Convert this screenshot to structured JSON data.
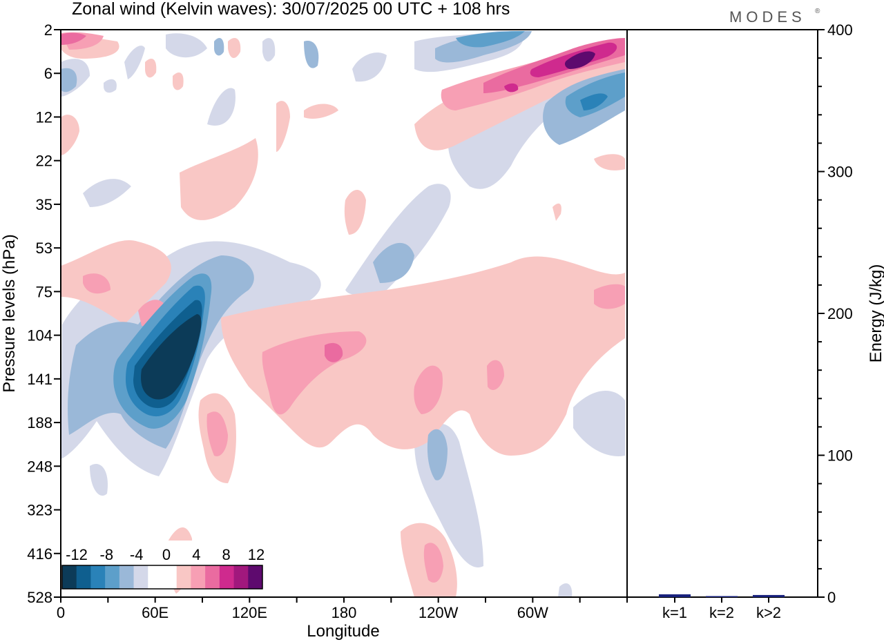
{
  "chart_data": [
    {
      "type": "heatmap",
      "title": "Zonal wind (Kelvin waves):  30/07/2025  00 UTC  + 108 hrs",
      "xlabel": "Longitude",
      "ylabel": "Pressure levels (hPa)",
      "x_ticks": [
        "0",
        "60E",
        "120E",
        "180",
        "120W",
        "60W"
      ],
      "x_tick_positions_deg": [
        0,
        60,
        120,
        180,
        240,
        300
      ],
      "xlim": [
        0,
        360
      ],
      "y_ticks": [
        "2",
        "6",
        "12",
        "22",
        "35",
        "53",
        "75",
        "104",
        "141",
        "188",
        "248",
        "323",
        "416",
        "528"
      ],
      "colorbar": {
        "labels": [
          "-12",
          "-8",
          "-4",
          "0",
          "4",
          "8",
          "12"
        ],
        "levels": [
          -14,
          -12,
          -10,
          -8,
          -6,
          -4,
          -2,
          2,
          4,
          6,
          8,
          10,
          12,
          14
        ],
        "colors": [
          "#0c3b58",
          "#0f5f8f",
          "#2a82b8",
          "#5d9fca",
          "#9ab8d8",
          "#d4d8e9",
          "#ffffff",
          "#ffffff",
          "#f9c7c5",
          "#f79fb4",
          "#ea6ba0",
          "#cf2a8e",
          "#a1187d",
          "#5e0a6e"
        ]
      },
      "features": [
        {
          "name": "strong easterly core",
          "lon": 68,
          "pressure_hPa": 130,
          "value": -14
        },
        {
          "name": "upper westerly band",
          "lon": 330,
          "pressure_hPa": 5,
          "value": 14
        },
        {
          "name": "upper easterly band",
          "lon": 335,
          "pressure_hPa": 10,
          "value": -10
        },
        {
          "name": "westerly band",
          "lon": 170,
          "pressure_hPa": 120,
          "value": 8
        }
      ]
    },
    {
      "type": "bar",
      "categories": [
        "k=1",
        "k=2",
        "k>2"
      ],
      "values": [
        2,
        0.5,
        1.5
      ],
      "ylabel": "Energy (J/kg)",
      "ylim": [
        0,
        400
      ],
      "y_ticks": [
        "0",
        "100",
        "200",
        "300",
        "400"
      ],
      "bar_color": "#1a237e"
    }
  ],
  "brand": "MODES",
  "brand_mark": "®"
}
